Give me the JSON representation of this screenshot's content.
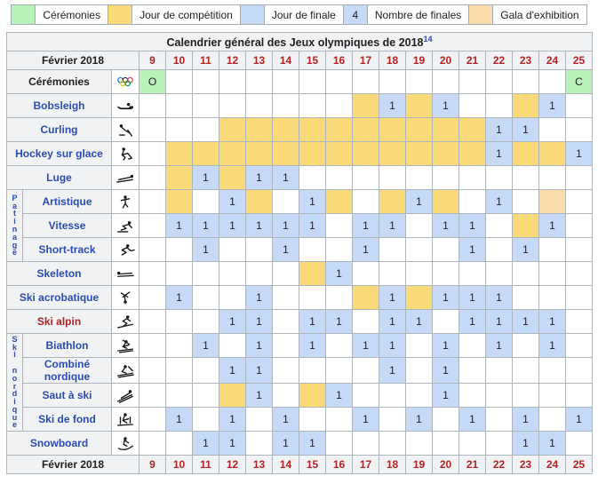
{
  "colors": {
    "ceremony": "#b9f2b9",
    "competition": "#fad978",
    "final": "#c6d9f7",
    "gala": "#fadcad",
    "date_red": "#b32424",
    "link_blue": "#2b4bb5"
  },
  "legend": {
    "items": [
      {
        "name": "ceremony",
        "swatch": "ceremony",
        "swatch_text": "",
        "label": "Cérémonies"
      },
      {
        "name": "competition",
        "swatch": "competition",
        "swatch_text": "",
        "label": "Jour de compétition"
      },
      {
        "name": "final",
        "swatch": "final",
        "swatch_text": "",
        "label": "Jour de finale"
      },
      {
        "name": "finals-count",
        "swatch": "final",
        "swatch_text": "4",
        "label": "Nombre de finales"
      },
      {
        "name": "gala",
        "swatch": "gala",
        "swatch_text": "",
        "label": "Gala d'exhibition"
      }
    ]
  },
  "table": {
    "title": "Calendrier général des Jeux olympiques de 2018",
    "title_ref": "14",
    "month_label": "Février 2018",
    "days": [
      "9",
      "10",
      "11",
      "12",
      "13",
      "14",
      "15",
      "16",
      "17",
      "18",
      "19",
      "20",
      "21",
      "22",
      "23",
      "24",
      "25"
    ],
    "groups": {
      "patinage": {
        "label": "Patinage",
        "vertical": [
          "P",
          "a",
          "t",
          "i",
          "n",
          "a",
          "g",
          "e"
        ]
      },
      "ski-nordique": {
        "label": "Ski nordique",
        "vertical": [
          "S",
          "k",
          "i",
          "",
          "n",
          "o",
          "r",
          "d",
          "i",
          "q",
          "u",
          "e"
        ]
      }
    },
    "rows": [
      {
        "id": "ceremonies",
        "label": "Cérémonies",
        "style": "plain",
        "icon": "olympic-rings-icon",
        "group": null,
        "cells": {
          "9": "ceremony:O",
          "25": "ceremony:C"
        }
      },
      {
        "id": "bobsleigh",
        "label": "Bobsleigh",
        "style": "link",
        "icon": "bobsleigh-icon",
        "group": null,
        "cells": {
          "17": "comp",
          "18": "final:1",
          "19": "comp",
          "20": "final:1",
          "23": "comp",
          "24": "final:1"
        }
      },
      {
        "id": "curling",
        "label": "Curling",
        "style": "link",
        "icon": "curling-icon",
        "group": null,
        "cells": {
          "12": "comp",
          "13": "comp",
          "14": "comp",
          "15": "comp",
          "16": "comp",
          "17": "comp",
          "18": "comp",
          "19": "comp",
          "20": "comp",
          "21": "comp",
          "22": "final:1",
          "23": "final:1"
        }
      },
      {
        "id": "hockey-sur-glace",
        "label": "Hockey sur glace",
        "style": "link",
        "icon": "ice-hockey-icon",
        "group": null,
        "cells": {
          "10": "comp",
          "11": "comp",
          "12": "comp",
          "13": "comp",
          "14": "comp",
          "15": "comp",
          "16": "comp",
          "17": "comp",
          "18": "comp",
          "19": "comp",
          "20": "comp",
          "21": "comp",
          "22": "final:1",
          "23": "comp",
          "24": "comp",
          "25": "final:1"
        }
      },
      {
        "id": "luge",
        "label": "Luge",
        "style": "link",
        "icon": "luge-icon",
        "group": null,
        "cells": {
          "10": "comp",
          "11": "final:1",
          "12": "comp",
          "13": "final:1",
          "14": "final:1"
        }
      },
      {
        "id": "artistique",
        "label": "Artistique",
        "style": "link",
        "icon": "figure-skating-icon",
        "group": "patinage",
        "cells": {
          "10": "comp",
          "12": "final:1",
          "13": "comp",
          "15": "final:1",
          "16": "comp",
          "18": "comp",
          "19": "final:1",
          "20": "comp",
          "22": "final:1",
          "24": "gala"
        }
      },
      {
        "id": "vitesse",
        "label": "Vitesse",
        "style": "link",
        "icon": "speed-skating-icon",
        "group": "patinage",
        "cells": {
          "10": "final:1",
          "11": "final:1",
          "12": "final:1",
          "13": "final:1",
          "14": "final:1",
          "15": "final:1",
          "17": "final:1",
          "18": "final:1",
          "20": "final:1",
          "21": "final:1",
          "23": "comp",
          "24": "final:1"
        }
      },
      {
        "id": "short-track",
        "label": "Short-track",
        "style": "link",
        "icon": "short-track-icon",
        "group": "patinage",
        "cells": {
          "11": "final:1",
          "14": "final:1",
          "17": "final:1",
          "21": "final:1",
          "23": "final:1"
        }
      },
      {
        "id": "skeleton",
        "label": "Skeleton",
        "style": "link",
        "icon": "skeleton-icon",
        "group": null,
        "cells": {
          "15": "comp",
          "16": "final:1"
        }
      },
      {
        "id": "ski-acrobatique",
        "label": "Ski acrobatique",
        "style": "link",
        "icon": "freestyle-skiing-icon",
        "group": null,
        "cells": {
          "10": "final:1",
          "13": "final:1",
          "17": "comp",
          "18": "final:1",
          "19": "comp",
          "20": "final:1",
          "21": "final:1",
          "22": "final:1"
        }
      },
      {
        "id": "ski-alpin",
        "label": "Ski alpin",
        "style": "red",
        "icon": "alpine-skiing-icon",
        "group": null,
        "cells": {
          "12": "final:1",
          "13": "final:1",
          "15": "final:1",
          "16": "final:1",
          "18": "final:1",
          "19": "final:1",
          "21": "final:1",
          "22": "final:1",
          "23": "final:1",
          "24": "final:1"
        }
      },
      {
        "id": "biathlon",
        "label": "Biathlon",
        "style": "link",
        "icon": "biathlon-icon",
        "group": "ski-nordique",
        "cells": {
          "11": "final:1",
          "13": "final:1",
          "15": "final:1",
          "17": "final:1",
          "18": "final:1",
          "20": "final:1",
          "22": "final:1",
          "24": "final:1"
        }
      },
      {
        "id": "combine-nordique",
        "label": "Combiné nordique",
        "style": "link",
        "icon": "nordic-combined-icon",
        "group": "ski-nordique",
        "cells": {
          "12": "final:1",
          "13": "final:1",
          "18": "final:1",
          "20": "final:1"
        }
      },
      {
        "id": "saut-a-ski",
        "label": "Saut à ski",
        "style": "link",
        "icon": "ski-jumping-icon",
        "group": "ski-nordique",
        "cells": {
          "12": "comp",
          "13": "final:1",
          "15": "comp",
          "16": "final:1",
          "20": "final:1"
        }
      },
      {
        "id": "ski-de-fond",
        "label": "Ski de fond",
        "style": "link",
        "icon": "cross-country-skiing-icon",
        "group": "ski-nordique",
        "cells": {
          "10": "final:1",
          "12": "final:1",
          "14": "final:1",
          "17": "final:1",
          "19": "final:1",
          "21": "final:1",
          "23": "final:1",
          "25": "final:1"
        }
      },
      {
        "id": "snowboard",
        "label": "Snowboard",
        "style": "link",
        "icon": "snowboard-icon",
        "group": null,
        "cells": {
          "11": "final:1",
          "12": "final:1",
          "14": "final:1",
          "15": "final:1",
          "23": "final:1",
          "24": "final:1"
        }
      }
    ]
  }
}
